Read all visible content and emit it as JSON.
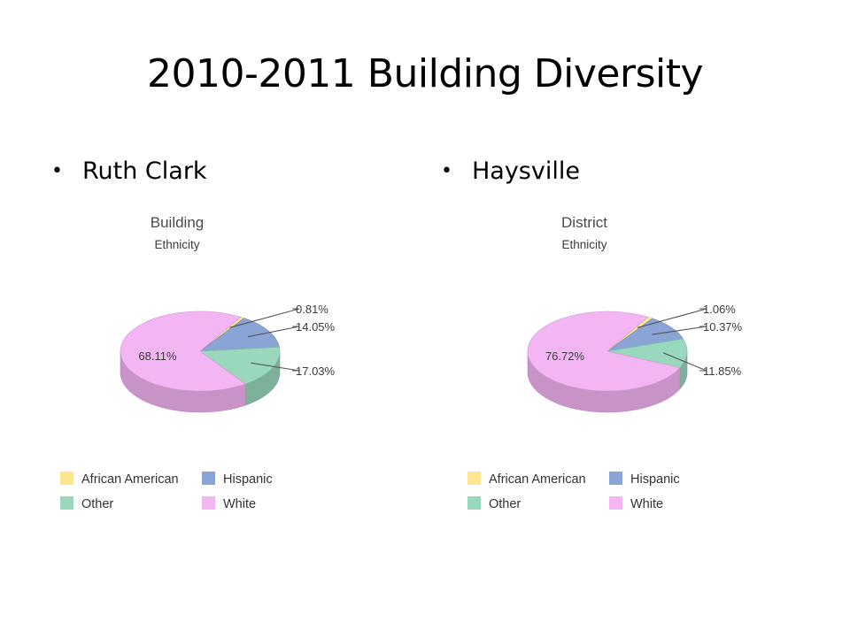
{
  "slide": {
    "title": "2010-2011 Building Diversity",
    "bullets": [
      "Ruth Clark",
      "Haysville"
    ]
  },
  "colors": {
    "African American": "#fde68f",
    "Hispanic": "#8aa4d6",
    "Other": "#9ad8bd",
    "White": "#f4b5f4"
  },
  "chart_data": [
    {
      "type": "pie",
      "title": "Building",
      "subtitle": "Ethnicity",
      "labels": [
        "African American",
        "Hispanic",
        "Other",
        "White"
      ],
      "values": [
        0.81,
        14.05,
        17.03,
        68.11
      ],
      "value_labels": [
        "0.81%",
        "14.05%",
        "17.03%",
        "68.11%"
      ],
      "legend": [
        "African American",
        "Hispanic",
        "Other",
        "White"
      ],
      "legend_position": "bottom"
    },
    {
      "type": "pie",
      "title": "District",
      "subtitle": "Ethnicity",
      "labels": [
        "African American",
        "Hispanic",
        "Other",
        "White"
      ],
      "values": [
        1.06,
        10.37,
        11.85,
        76.72
      ],
      "value_labels": [
        "1.06%",
        "10.37%",
        "11.85%",
        "76.72%"
      ],
      "legend": [
        "African American",
        "Hispanic",
        "Other",
        "White"
      ],
      "legend_position": "bottom"
    }
  ]
}
